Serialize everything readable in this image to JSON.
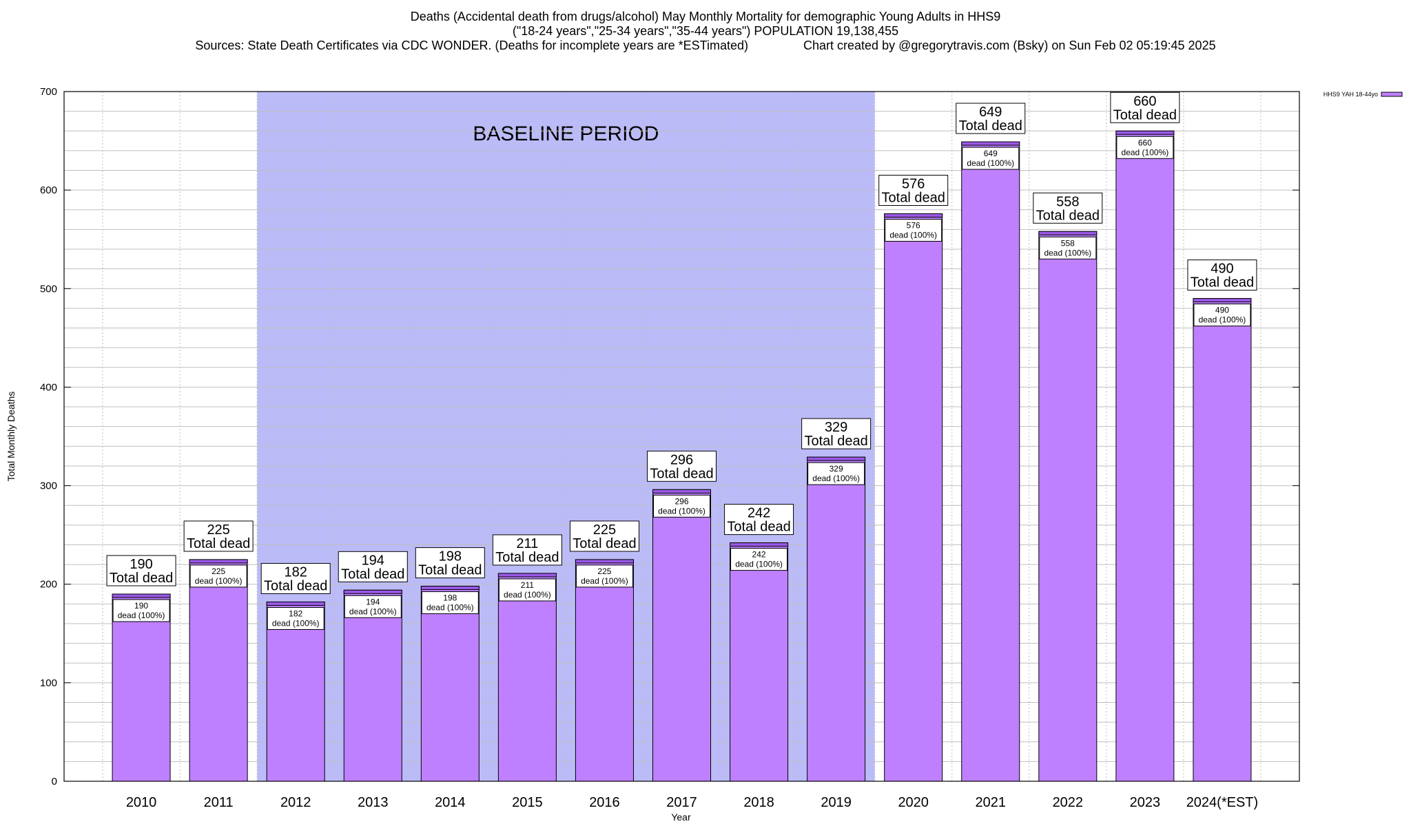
{
  "title_lines": [
    "Deaths (Accidental death from drugs/alcohol) May Monthly Mortality for demographic Young Adults in HHS9",
    "(\"18-24 years\",\"25-34 years\",\"35-44 years\") POPULATION 19,138,455",
    "Sources: State Death Certificates via CDC WONDER. (Deaths for incomplete years are *ESTimated)                Chart created by @gregorytravis.com (Bsky) on Sun Feb 02 05:19:45 2025"
  ],
  "colors": {
    "bar_fill": "#bf80ff",
    "bar_cap": "#9a59e6",
    "baseline_band": "#bbbbf8",
    "grid": "#bfbfbf",
    "legend_swatch": "#bf80ff"
  },
  "chart_data": {
    "type": "bar",
    "xlabel": "Year",
    "ylabel": "Total Monthly Deaths",
    "ylim": [
      0,
      700
    ],
    "y_ticks": [
      0,
      100,
      200,
      300,
      400,
      500,
      600,
      700
    ],
    "grid": true,
    "legend_position": "top-right",
    "categories": [
      "2010",
      "2011",
      "2012",
      "2013",
      "2014",
      "2015",
      "2016",
      "2017",
      "2018",
      "2019",
      "2020",
      "2021",
      "2022",
      "2023",
      "2024(*EST)"
    ],
    "series": [
      {
        "name": "HHS9 YAH 18-44yo",
        "values": [
          190,
          225,
          182,
          194,
          198,
          211,
          225,
          296,
          242,
          329,
          576,
          649,
          558,
          660,
          490
        ]
      }
    ],
    "top_label_suffix": "Total dead",
    "inner_label_suffix": "dead (100%)",
    "baseline_period": {
      "label": "BASELINE PERIOD",
      "from": "2012",
      "to": "2019"
    }
  }
}
